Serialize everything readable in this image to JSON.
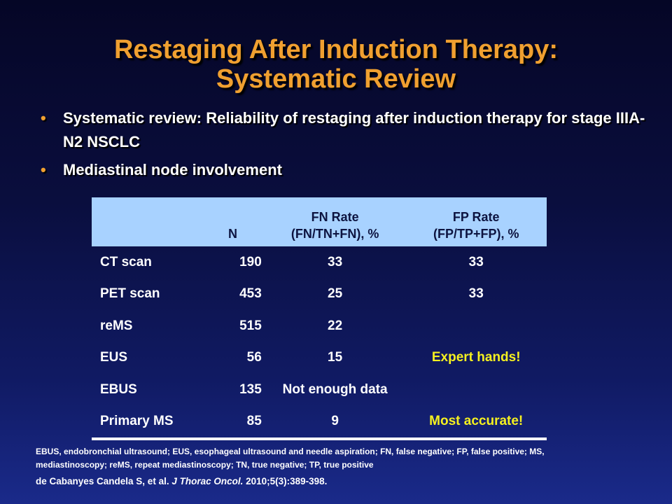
{
  "title": {
    "line1": "Restaging After Induction Therapy:",
    "line2": "Systematic Review"
  },
  "bullets": [
    "Systematic review: Reliability of  restaging after induction therapy for stage IIIA-N2 NSCLC",
    "Mediastinal node involvement"
  ],
  "colors": {
    "title": "#f0a030",
    "header_bg": "#a8d2ff",
    "highlight": "#f5f020"
  },
  "table": {
    "headers": {
      "col0": "",
      "col1": "N",
      "col2_line1": "FN Rate",
      "col2_line2": "(FN/TN+FN), %",
      "col3_line1": "FP Rate",
      "col3_line2": "(FP/TP+FP), %"
    },
    "rows": [
      {
        "method": "CT scan",
        "n": "190",
        "fn": "33",
        "fp": "33"
      },
      {
        "method": "PET scan",
        "n": "453",
        "fn": "25",
        "fp": "33"
      },
      {
        "method": "reMS",
        "n": "515",
        "fn": "22",
        "fp": ""
      },
      {
        "method": "EUS",
        "n": "56",
        "fn": "15",
        "fp": "Expert hands!"
      },
      {
        "method": "EBUS",
        "n": "135",
        "fn": "Not enough data",
        "fp": ""
      },
      {
        "method": "Primary MS",
        "n": "85",
        "fn": "9",
        "fp": "Most accurate!"
      }
    ]
  },
  "footnote": {
    "line1": "EBUS, endobronchial ultrasound;  EUS, esophageal ultrasound and needle aspiration; FN, false negative; FP, false positive;  MS,",
    "line2": "mediastinoscopy;  reMS, repeat mediastinoscopy;  TN, true negative;  TP, true positive"
  },
  "citation": {
    "authors": "de Cabanyes Candela S, et al. ",
    "journal": "J Thorac Oncol.",
    "details": " 2010;5(3):389-398."
  }
}
